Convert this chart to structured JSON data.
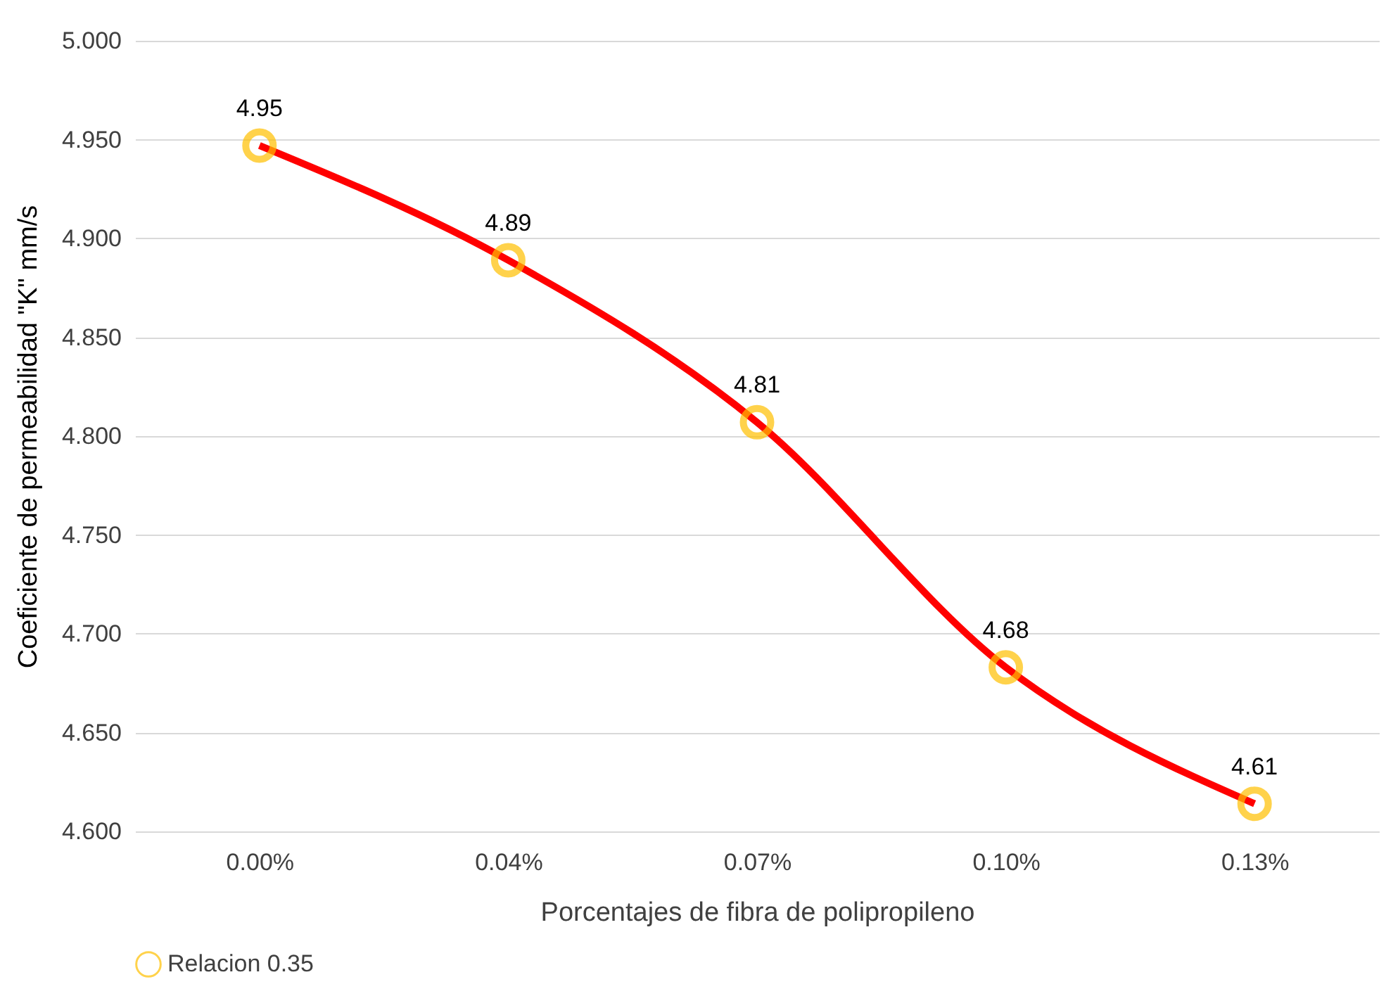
{
  "chart_data": {
    "type": "line",
    "xlabel": "Porcentajes de fibra de polipropileno",
    "ylabel": "Coeficiente de permeabilidad \"K\" mm/s",
    "categories": [
      "0.00%",
      "0.04%",
      "0.07%",
      "0.10%",
      "0.13%"
    ],
    "series": [
      {
        "name": "Relacion 0.35",
        "color": "#ff0000",
        "colors": [
          "#ffc000",
          "#ffc000",
          "#ffc000",
          "#ffc000",
          "#ffc000"
        ],
        "values": [
          4.947,
          4.889,
          4.807,
          4.683,
          4.614
        ],
        "value_labels": [
          "4.95",
          "4.89",
          "4.81",
          "4.68",
          "4.61"
        ]
      }
    ],
    "ylim": [
      4.6,
      5.0
    ],
    "yticks": [
      {
        "value": 4.6,
        "label": "4.600"
      },
      {
        "value": 4.65,
        "label": "4.650"
      },
      {
        "value": 4.7,
        "label": "4.700"
      },
      {
        "value": 4.75,
        "label": "4.750"
      },
      {
        "value": 4.8,
        "label": "4.800"
      },
      {
        "value": 4.85,
        "label": "4.850"
      },
      {
        "value": 4.9,
        "label": "4.900"
      },
      {
        "value": 4.95,
        "label": "4.950"
      },
      {
        "value": 5.0,
        "label": "5.000"
      }
    ],
    "grid": "y",
    "legend": "bottom",
    "marker": "circle",
    "line_style": "solid"
  }
}
